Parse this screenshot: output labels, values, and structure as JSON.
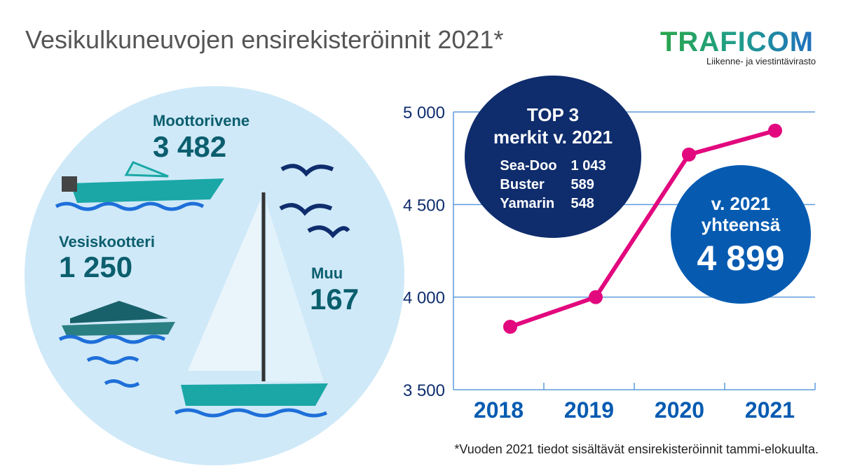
{
  "title": "Vesikulkuneuvojen ensirekisteröinnit 2021*",
  "logo": {
    "name": "TRAFICOM",
    "subtitle": "Liikenne- ja viestintävirasto"
  },
  "categories": [
    {
      "name": "Moottorivene",
      "value": "3 482"
    },
    {
      "name": "Vesiskootteri",
      "value": "1 250"
    },
    {
      "name": "Muu",
      "value": "167"
    }
  ],
  "top3": {
    "heading1": "TOP 3",
    "heading2": "merkit v. 2021",
    "rows": [
      {
        "brand": "Sea-Doo",
        "count": "1 043"
      },
      {
        "brand": "Buster",
        "count": "589"
      },
      {
        "brand": "Yamarin",
        "count": "548"
      }
    ]
  },
  "total": {
    "line1": "v. 2021",
    "line2": "yhteensä",
    "value": "4 899"
  },
  "footnote": "*Vuoden 2021 tiedot sisältävät ensirekisteröinnit tammi-elokuulta.",
  "colors": {
    "line": "#e2087e",
    "grid": "#5b9bdc",
    "axis_text": "#0f2d6d",
    "year_text": "#065bb1"
  },
  "chart_data": {
    "type": "line",
    "categories": [
      "2018",
      "2019",
      "2020",
      "2021"
    ],
    "values": [
      3840,
      4000,
      4770,
      4899
    ],
    "ylim": [
      3500,
      5000
    ],
    "yticks": [
      3500,
      4000,
      4500,
      5000
    ],
    "ytick_labels": [
      "3 500",
      "4 000",
      "4 500",
      "5 000"
    ],
    "grid": true,
    "title": "",
    "xlabel": "",
    "ylabel": ""
  }
}
